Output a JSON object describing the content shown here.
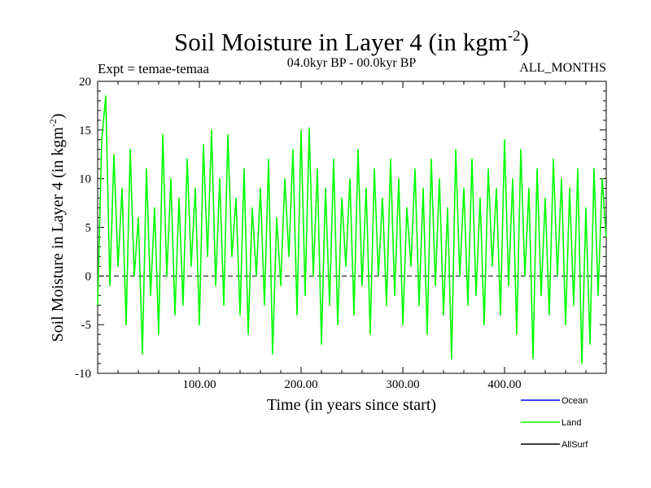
{
  "header": {
    "title_main": "Soil Moisture in Layer 4 (in kgm",
    "title_exp": "-2",
    "title_close": ")",
    "expt": "Expt = temae-temaa",
    "period": "04.0kyr BP - 00.0kyr BP",
    "months": "ALL_MONTHS"
  },
  "chart_data": {
    "type": "line",
    "xlabel": "Time (in years since start)",
    "ylabel_main": "Soil Moisture in Layer 4 (in kgm",
    "ylabel_exp": "-2",
    "ylabel_close": ")",
    "xlim": [
      0,
      500
    ],
    "ylim": [
      -10,
      20
    ],
    "x_ticks": [
      100,
      200,
      300,
      400
    ],
    "x_tick_labels": [
      "100.00",
      "200.00",
      "300.00",
      "400.00"
    ],
    "y_ticks": [
      -10,
      -5,
      0,
      5,
      10,
      15,
      20
    ],
    "y_tick_labels": [
      "-10",
      "-5",
      "0",
      "5",
      "10",
      "15",
      "20"
    ],
    "zero_line": 0,
    "legend": [
      {
        "name": "Ocean",
        "color": "#0000ff"
      },
      {
        "name": "Land",
        "color": "#00ff00"
      },
      {
        "name": "AllSurf",
        "color": "#000000"
      }
    ],
    "series": [
      {
        "name": "Land",
        "color": "#00ff00",
        "x": [
          0,
          4,
          8,
          12,
          16,
          20,
          24,
          28,
          32,
          36,
          40,
          44,
          48,
          52,
          56,
          60,
          64,
          68,
          72,
          76,
          80,
          84,
          88,
          92,
          96,
          100,
          104,
          108,
          112,
          116,
          120,
          124,
          128,
          132,
          136,
          140,
          144,
          148,
          152,
          156,
          160,
          164,
          168,
          172,
          176,
          180,
          184,
          188,
          192,
          196,
          200,
          204,
          208,
          212,
          216,
          220,
          224,
          228,
          232,
          236,
          240,
          244,
          248,
          252,
          256,
          260,
          264,
          268,
          272,
          276,
          280,
          284,
          288,
          292,
          296,
          300,
          304,
          308,
          312,
          316,
          320,
          324,
          328,
          332,
          336,
          340,
          344,
          348,
          352,
          356,
          360,
          364,
          368,
          372,
          376,
          380,
          384,
          388,
          392,
          396,
          400,
          404,
          408,
          412,
          416,
          420,
          424,
          428,
          432,
          436,
          440,
          444,
          448,
          452,
          456,
          460,
          464,
          468,
          472,
          476,
          480,
          484,
          488,
          492,
          496,
          500
        ],
        "values": [
          -3,
          14,
          18.5,
          -1,
          12.5,
          1,
          9,
          -5,
          13,
          0,
          6,
          -8,
          11,
          -2,
          7,
          -6,
          14.5,
          0,
          10,
          -4,
          8,
          -3,
          12,
          1,
          9,
          -5,
          13.5,
          2,
          15,
          -1,
          10,
          -3,
          14.5,
          2,
          8,
          -4,
          11,
          -6,
          7,
          0,
          9,
          -3,
          12,
          -8,
          6,
          -1,
          10,
          2,
          13,
          -4,
          15,
          -2,
          15.2,
          0,
          11,
          -7,
          9,
          -3,
          12,
          -5,
          8,
          1,
          10,
          -4,
          13,
          -1,
          9,
          -6,
          11,
          0,
          8,
          -3,
          12,
          -2,
          10,
          -5,
          7,
          1,
          11,
          -3,
          9,
          -6,
          12,
          -1,
          10,
          -4,
          7,
          -8.5,
          13,
          0,
          9,
          -3,
          12,
          -2,
          8,
          -5,
          11,
          1,
          9,
          -4,
          14,
          -1,
          10,
          -6,
          13,
          0,
          9,
          -8.5,
          11,
          -2,
          8,
          -4,
          12,
          0,
          10,
          -5,
          9,
          -3,
          11,
          -9,
          7,
          -7,
          11,
          -2,
          10,
          4
        ]
      }
    ]
  }
}
